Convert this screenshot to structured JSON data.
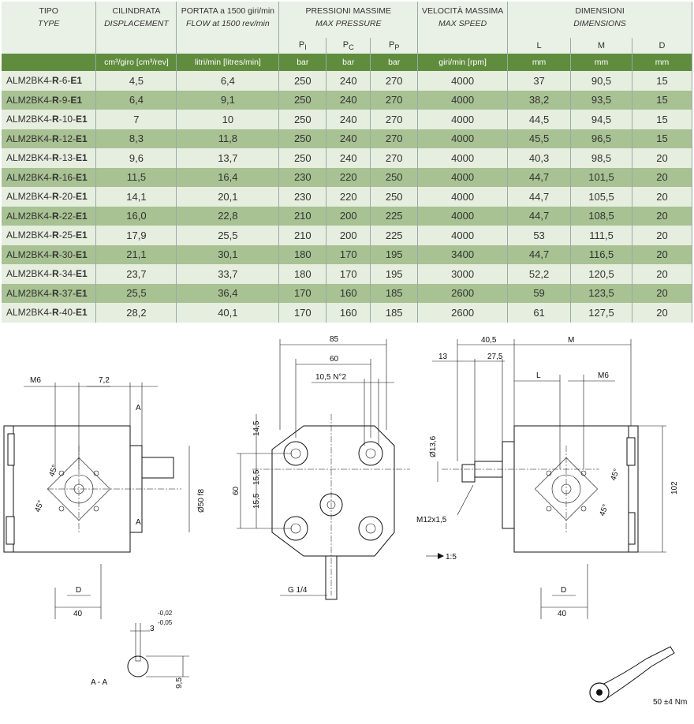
{
  "table": {
    "headers": [
      {
        "it": "TIPO",
        "en": "TYPE"
      },
      {
        "it": "CILINDRATA",
        "en": "DISPLACEMENT"
      },
      {
        "it": "PORTATA a 1500 giri/min",
        "en": "FLOW at 1500 rev/min"
      },
      {
        "it": "PRESSIONI MASSIME",
        "en": "MAX PRESSURE"
      },
      {
        "it": "VELOCITÀ MASSIMA",
        "en": "MAX SPEED"
      },
      {
        "it": "DIMENSIONI",
        "en": "DIMENSIONS"
      }
    ],
    "subheaders": {
      "p1": "P",
      "p1s": "I",
      "p2": "P",
      "p2s": "C",
      "p3": "P",
      "p3s": "P",
      "l": "L",
      "m": "M",
      "d": "D"
    },
    "units": [
      "",
      "cm³/giro [cm³/rev]",
      "litri/min [litres/min]",
      "bar",
      "bar",
      "bar",
      "giri/min [rpm]",
      "mm",
      "mm",
      "mm"
    ],
    "rows": [
      {
        "pre": "ALM2BK4-",
        "r": "R",
        "mid": "-6-",
        "e": "E1",
        "v": [
          "4,5",
          "6,4",
          "250",
          "240",
          "270",
          "4000",
          "37",
          "90,5",
          "15"
        ]
      },
      {
        "pre": "ALM2BK4-",
        "r": "R",
        "mid": "-9-",
        "e": "E1",
        "v": [
          "6,4",
          "9,1",
          "250",
          "240",
          "270",
          "4000",
          "38,2",
          "93,5",
          "15"
        ]
      },
      {
        "pre": "ALM2BK4-",
        "r": "R",
        "mid": "-10-",
        "e": "E1",
        "v": [
          "7",
          "10",
          "250",
          "240",
          "270",
          "4000",
          "44,5",
          "94,5",
          "15"
        ]
      },
      {
        "pre": "ALM2BK4-",
        "r": "R",
        "mid": "-12-",
        "e": "E1",
        "v": [
          "8,3",
          "11,8",
          "250",
          "240",
          "270",
          "4000",
          "45,5",
          "96,5",
          "15"
        ]
      },
      {
        "pre": "ALM2BK4-",
        "r": "R",
        "mid": "-13-",
        "e": "E1",
        "v": [
          "9,6",
          "13,7",
          "250",
          "240",
          "270",
          "4000",
          "40,3",
          "98,5",
          "20"
        ]
      },
      {
        "pre": "ALM2BK4-",
        "r": "R",
        "mid": "-16-",
        "e": "E1",
        "v": [
          "11,5",
          "16,4",
          "230",
          "220",
          "250",
          "4000",
          "44,7",
          "101,5",
          "20"
        ]
      },
      {
        "pre": "ALM2BK4-",
        "r": "R",
        "mid": "-20-",
        "e": "E1",
        "v": [
          "14,1",
          "20,1",
          "230",
          "220",
          "250",
          "4000",
          "44,7",
          "105,5",
          "20"
        ]
      },
      {
        "pre": "ALM2BK4-",
        "r": "R",
        "mid": "-22-",
        "e": "E1",
        "v": [
          "16,0",
          "22,8",
          "210",
          "200",
          "225",
          "4000",
          "44,7",
          "108,5",
          "20"
        ]
      },
      {
        "pre": "ALM2BK4-",
        "r": "R",
        "mid": "-25-",
        "e": "E1",
        "v": [
          "17,9",
          "25,5",
          "210",
          "200",
          "225",
          "4000",
          "53",
          "111,5",
          "20"
        ]
      },
      {
        "pre": "ALM2BK4-",
        "r": "R",
        "mid": "-30-",
        "e": "E1",
        "v": [
          "21,1",
          "30,1",
          "180",
          "170",
          "195",
          "3400",
          "44,7",
          "116,5",
          "20"
        ]
      },
      {
        "pre": "ALM2BK4-",
        "r": "R",
        "mid": "-34-",
        "e": "E1",
        "v": [
          "23,7",
          "33,7",
          "180",
          "170",
          "195",
          "3000",
          "52,2",
          "120,5",
          "20"
        ]
      },
      {
        "pre": "ALM2BK4-",
        "r": "R",
        "mid": "-37-",
        "e": "E1",
        "v": [
          "25,5",
          "36,4",
          "170",
          "160",
          "185",
          "2600",
          "59",
          "123,5",
          "20"
        ]
      },
      {
        "pre": "ALM2BK4-",
        "r": "R",
        "mid": "-40-",
        "e": "E1",
        "v": [
          "28,2",
          "40,1",
          "170",
          "160",
          "185",
          "2600",
          "61",
          "127,5",
          "20"
        ]
      }
    ]
  },
  "drawing": {
    "left": {
      "m6": "M6",
      "d72": "7,2",
      "a1": "A",
      "a2": "A",
      "phi": "Ø50 f8",
      "deg1": "45°",
      "deg2": "45°",
      "d": "D",
      "d40": "40"
    },
    "section": {
      "tol_base": "3",
      "tol_up": "-0,02",
      "tol_dn": "-0,05",
      "d95": "9,5",
      "label": "A - A"
    },
    "front": {
      "d85": "85",
      "d60": "60",
      "d105": "10,5 N°2",
      "d145": "14,5",
      "d60v": "60",
      "d155a": "15,5",
      "d155b": "15,5",
      "g14": "G 1/4"
    },
    "right": {
      "d405": "40,5",
      "m": "M",
      "d13": "13",
      "d275": "27,5",
      "l": "L",
      "m6": "M6",
      "phi136": "Ø13,6",
      "m12": "M12x1,5",
      "ratio": "1:5",
      "deg1": "45°",
      "deg2": "45°",
      "d102": "102",
      "d": "D",
      "d40": "40"
    },
    "torque": "50 ±4 Nm"
  },
  "colors": {
    "header_green": "#5f8c3d",
    "row_light": "#e6eedf",
    "row_dark": "#a8c293"
  }
}
